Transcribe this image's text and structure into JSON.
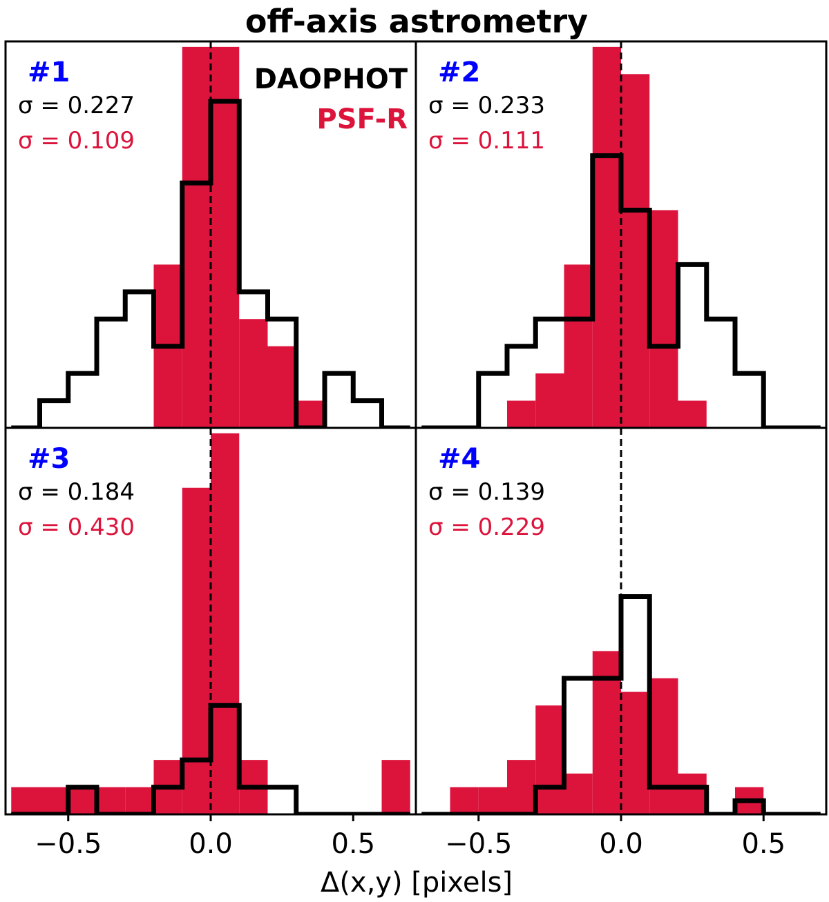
{
  "chart_data": {
    "type": "histogram-grid",
    "title": "off-axis astrometry",
    "xlabel": "Δ(x,y) [pixels]",
    "xlim": [
      -0.72,
      0.72
    ],
    "ylim": [
      0,
      14.2
    ],
    "xticks": [
      -0.5,
      0.0,
      0.5
    ],
    "xtick_labels": [
      "−0.5",
      "0.0",
      "0.5"
    ],
    "legend": [
      {
        "name": "DAOPHOT",
        "color": "#000000"
      },
      {
        "name": "PSF-R",
        "color": "#dc143c"
      }
    ],
    "colors": {
      "psfr": "#dc143c",
      "daophot": "#000000",
      "panel_label": "#0000ff"
    },
    "bin_width": 0.1,
    "panels": [
      {
        "label": "#1",
        "sigma_daophot": "σ = 0.227",
        "sigma_psfr": "σ = 0.109",
        "psfr_bins": [
          {
            "x0": -0.2,
            "h": 6.0
          },
          {
            "x0": -0.1,
            "h": 14.0
          },
          {
            "x0": 0.0,
            "h": 14.0
          },
          {
            "x0": 0.1,
            "h": 4.0
          },
          {
            "x0": 0.2,
            "h": 3.0
          },
          {
            "x0": 0.3,
            "h": 1.0
          }
        ],
        "daophot_edges": [
          -0.7,
          -0.6,
          -0.5,
          -0.4,
          -0.3,
          -0.2,
          -0.1,
          0.0,
          0.1,
          0.2,
          0.3,
          0.4,
          0.5,
          0.6,
          0.7
        ],
        "daophot_counts": [
          0,
          1,
          2,
          4,
          5,
          3,
          9,
          12,
          5,
          4,
          0,
          2,
          1,
          0
        ]
      },
      {
        "label": "#2",
        "sigma_daophot": "σ = 0.233",
        "sigma_psfr": "σ = 0.111",
        "psfr_bins": [
          {
            "x0": -0.4,
            "h": 1.0
          },
          {
            "x0": -0.3,
            "h": 2.0
          },
          {
            "x0": -0.2,
            "h": 6.0
          },
          {
            "x0": -0.1,
            "h": 14.0
          },
          {
            "x0": 0.0,
            "h": 13.0
          },
          {
            "x0": 0.1,
            "h": 8.0
          },
          {
            "x0": 0.2,
            "h": 1.0
          }
        ],
        "daophot_edges": [
          -0.7,
          -0.6,
          -0.5,
          -0.4,
          -0.3,
          -0.2,
          -0.1,
          0.0,
          0.1,
          0.2,
          0.3,
          0.4,
          0.5,
          0.6,
          0.7
        ],
        "daophot_counts": [
          0,
          0,
          2,
          3,
          4,
          4,
          10,
          8,
          3,
          6,
          4,
          2,
          0,
          0
        ]
      },
      {
        "label": "#3",
        "sigma_daophot": "σ = 0.184",
        "sigma_psfr": "σ = 0.430",
        "psfr_bins": [
          {
            "x0": -0.7,
            "h": 1.0
          },
          {
            "x0": -0.6,
            "h": 1.0
          },
          {
            "x0": -0.5,
            "h": 1.0
          },
          {
            "x0": -0.4,
            "h": 1.0
          },
          {
            "x0": -0.3,
            "h": 1.0
          },
          {
            "x0": -0.2,
            "h": 2.0
          },
          {
            "x0": -0.1,
            "h": 12.0
          },
          {
            "x0": 0.0,
            "h": 14.0
          },
          {
            "x0": 0.1,
            "h": 2.0
          },
          {
            "x0": 0.6,
            "h": 2.0
          }
        ],
        "daophot_edges": [
          -0.7,
          -0.6,
          -0.5,
          -0.4,
          -0.3,
          -0.2,
          -0.1,
          0.0,
          0.1,
          0.2,
          0.3,
          0.4,
          0.5,
          0.6,
          0.7
        ],
        "daophot_counts": [
          0,
          0,
          1,
          0,
          0,
          1,
          2,
          4,
          1,
          1,
          0,
          0,
          0,
          0
        ]
      },
      {
        "label": "#4",
        "sigma_daophot": "σ = 0.139",
        "sigma_psfr": "σ = 0.229",
        "psfr_bins": [
          {
            "x0": -0.6,
            "h": 1.0
          },
          {
            "x0": -0.5,
            "h": 1.0
          },
          {
            "x0": -0.4,
            "h": 2.0
          },
          {
            "x0": -0.3,
            "h": 4.0
          },
          {
            "x0": -0.2,
            "h": 1.5
          },
          {
            "x0": -0.1,
            "h": 6.0
          },
          {
            "x0": 0.0,
            "h": 4.5
          },
          {
            "x0": 0.1,
            "h": 5.0
          },
          {
            "x0": 0.2,
            "h": 1.5
          },
          {
            "x0": 0.4,
            "h": 1.0
          }
        ],
        "daophot_edges": [
          -0.7,
          -0.6,
          -0.5,
          -0.4,
          -0.3,
          -0.2,
          -0.1,
          0.0,
          0.1,
          0.2,
          0.3,
          0.4,
          0.5,
          0.6,
          0.7
        ],
        "daophot_counts": [
          0,
          0,
          0,
          0,
          1,
          5,
          5,
          8,
          1,
          1,
          0,
          0.5,
          0,
          0
        ]
      }
    ]
  }
}
